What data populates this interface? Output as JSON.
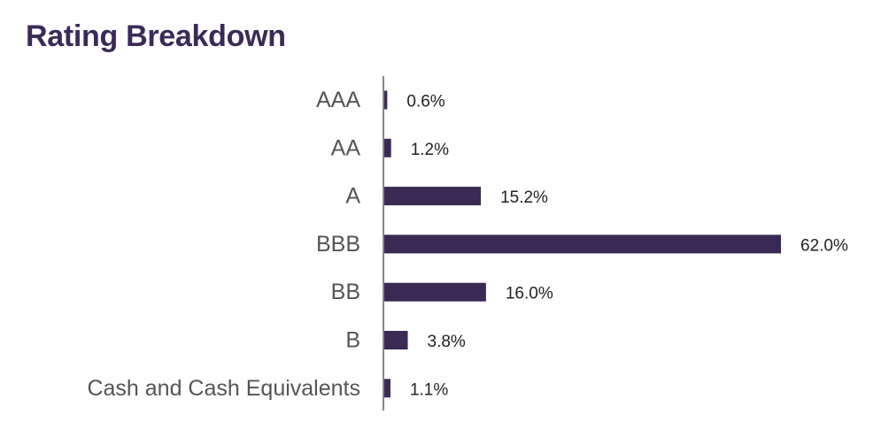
{
  "chart_data": {
    "type": "bar",
    "orientation": "horizontal",
    "title": "Rating Breakdown",
    "categories": [
      "AAA",
      "AA",
      "A",
      "BBB",
      "BB",
      "B",
      "Cash and Cash Equivalents"
    ],
    "values": [
      0.6,
      1.2,
      15.2,
      62.0,
      16.0,
      3.8,
      1.1
    ],
    "value_labels": [
      "0.6%",
      "1.2%",
      "15.2%",
      "62.0%",
      "16.0%",
      "3.8%",
      "1.1%"
    ],
    "unit": "%",
    "xlim": [
      0,
      62
    ],
    "grid": false,
    "legend": "none",
    "colors": {
      "bar": "#3b2a55",
      "title": "#3a2a58",
      "axis": "#888888"
    }
  }
}
